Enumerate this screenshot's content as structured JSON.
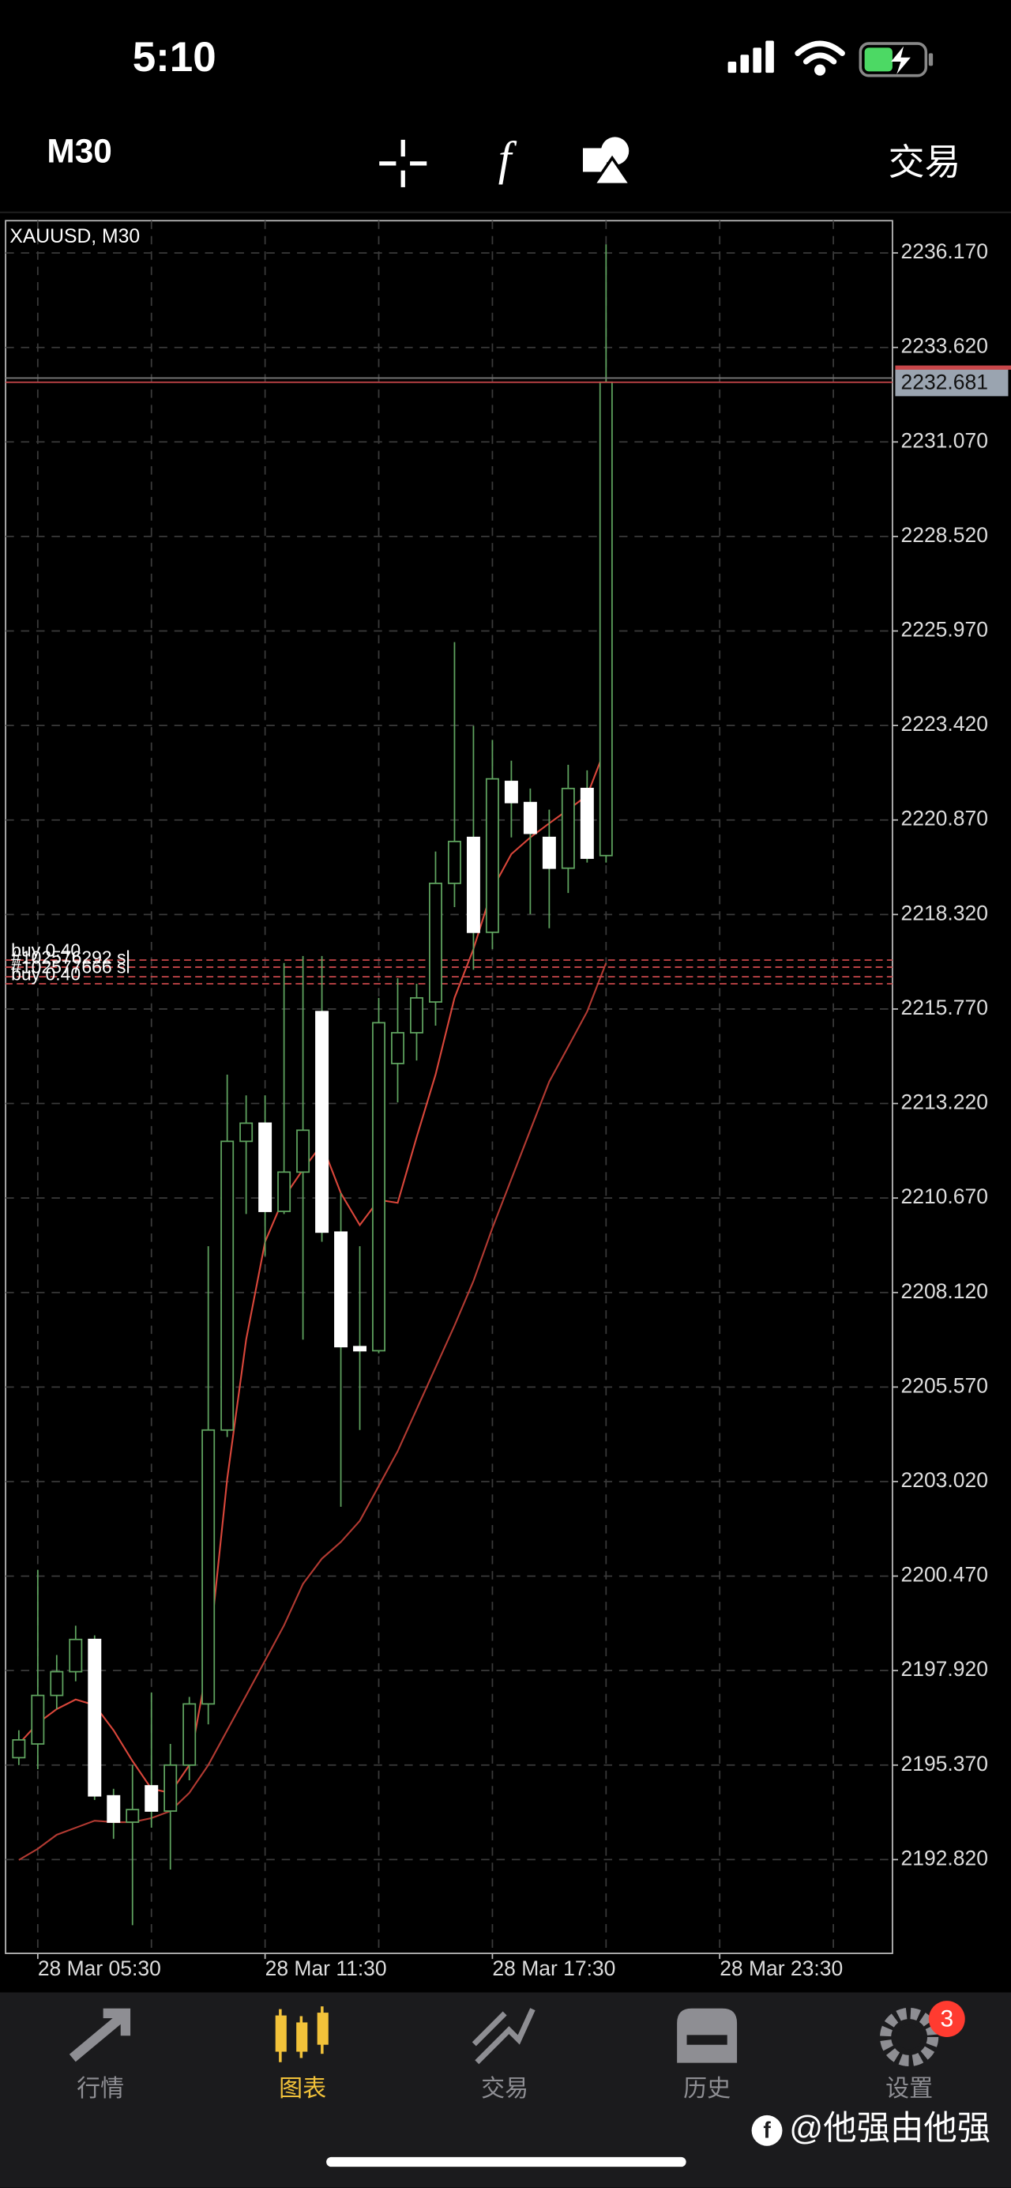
{
  "status_bar": {
    "time": "5:10"
  },
  "toolbar": {
    "timeframe": "M30",
    "trade": "交易"
  },
  "chart_data": {
    "type": "candlestick",
    "title": "XAUUSD, M30",
    "x": [
      5,
      5.5,
      6,
      6.5,
      7,
      7.5,
      8,
      8.5,
      9,
      9.5,
      10,
      10.5,
      11,
      11.5,
      12,
      12.5,
      13,
      13.5,
      14,
      14.5,
      15,
      15.5,
      16,
      16.5,
      17,
      17.5,
      18,
      18.5,
      19,
      19.5,
      20,
      20.5
    ],
    "open": [
      2195.57,
      2195.94,
      2197.25,
      2197.89,
      2198.76,
      2194.54,
      2193.83,
      2194.81,
      2194.13,
      2195.37,
      2197.02,
      2204.41,
      2212.2,
      2212.69,
      2210.31,
      2211.37,
      2215.7,
      2209.75,
      2206.66,
      2206.55,
      2214.3,
      2215.13,
      2215.96,
      2219.16,
      2220.4,
      2217.84,
      2221.91,
      2221.34,
      2220.4,
      2219.57,
      2221.72,
      2219.91
    ],
    "high": [
      2196.31,
      2200.64,
      2198.34,
      2199.13,
      2198.87,
      2194.73,
      2195.37,
      2197.33,
      2195.94,
      2197.21,
      2209.37,
      2214.0,
      2213.44,
      2213.44,
      2217.01,
      2217.2,
      2217.2,
      2210.8,
      2209.37,
      2216.07,
      2216.6,
      2216.45,
      2220.02,
      2225.67,
      2223.41,
      2223.03,
      2222.47,
      2221.72,
      2221.15,
      2222.36,
      2222.21,
      2236.4
    ],
    "low": [
      2195.37,
      2195.26,
      2196.88,
      2197.63,
      2194.43,
      2193.38,
      2191.05,
      2193.68,
      2192.55,
      2194.96,
      2196.47,
      2204.22,
      2210.24,
      2209.11,
      2210.24,
      2206.85,
      2209.49,
      2202.34,
      2204.41,
      2206.48,
      2213.25,
      2214.38,
      2215.32,
      2218.52,
      2216.83,
      2217.39,
      2220.4,
      2218.33,
      2217.95,
      2218.9,
      2219.72,
      2219.72
    ],
    "close": [
      2196.05,
      2197.25,
      2197.89,
      2198.76,
      2194.54,
      2193.83,
      2194.17,
      2194.13,
      2195.37,
      2197.02,
      2204.41,
      2212.2,
      2212.69,
      2210.31,
      2211.37,
      2212.5,
      2209.75,
      2206.66,
      2206.55,
      2215.4,
      2215.13,
      2216.07,
      2219.16,
      2220.29,
      2217.84,
      2221.98,
      2221.34,
      2220.51,
      2219.57,
      2221.72,
      2219.84,
      2232.681
    ],
    "up_color": "#5fa35f",
    "down_color": "#ffffff",
    "wick_color": "#5fa35f",
    "series": [
      {
        "color": "#d9463a",
        "values": [
          2195.94,
          2196.5,
          2196.88,
          2197.14,
          2196.99,
          2196.31,
          2195.48,
          2194.73,
          2194.62,
          2195.37,
          2198.19,
          2203.09,
          2206.85,
          2209.49,
          2210.69,
          2211.44,
          2212.12,
          2210.8,
          2209.94,
          2210.62,
          2210.54,
          2212.31,
          2214.0,
          2216.07,
          2217.39,
          2219.01,
          2219.95,
          2220.4,
          2220.78,
          2221.15,
          2221.53,
          2222.85
        ]
      },
      {
        "color": "#b23a32",
        "values": [
          2192.81,
          2193.11,
          2193.49,
          2193.68,
          2193.87,
          2193.83,
          2193.83,
          2193.94,
          2194.13,
          2194.62,
          2195.37,
          2196.31,
          2197.25,
          2198.19,
          2199.14,
          2200.26,
          2200.94,
          2201.39,
          2201.96,
          2202.9,
          2203.84,
          2204.97,
          2206.1,
          2207.23,
          2208.43,
          2209.86,
          2211.18,
          2212.5,
          2213.81,
          2214.75,
          2215.7,
          2217.01
        ]
      }
    ],
    "current_price": 2232.681,
    "current_price_color": "#c8474a",
    "levels": [
      {
        "value": 2217.09,
        "label": "buy 0.40",
        "color": "#c8474a"
      },
      {
        "value": 2216.9,
        "label": "#102576292 sl",
        "color": "#c8474a"
      },
      {
        "value": 2216.64,
        "label": "#102577666 sl",
        "color": "#c8474a"
      },
      {
        "value": 2216.45,
        "label": "buy 0.40",
        "color": "#c8474a"
      }
    ],
    "xlim": [
      4.65,
      28.06
    ],
    "ylim": [
      2190.29,
      2237.04
    ],
    "grid": true,
    "xticks": [
      {
        "value": 5.5,
        "label": "28 Mar 05:30"
      },
      {
        "value": 11.5,
        "label": "28 Mar 11:30"
      },
      {
        "value": 17.5,
        "label": "28 Mar 17:30"
      },
      {
        "value": 23.5,
        "label": "28 Mar 23:30"
      }
    ],
    "x_minor_grid": [
      8.5,
      14.5,
      20.5,
      26.5
    ],
    "yticks": [
      {
        "value": 2236.17,
        "label": "2236.170"
      },
      {
        "value": 2233.62,
        "label": "2233.620"
      },
      {
        "value": 2231.07,
        "label": "2231.070"
      },
      {
        "value": 2228.52,
        "label": "2228.520"
      },
      {
        "value": 2225.97,
        "label": "2225.970"
      },
      {
        "value": 2223.42,
        "label": "2223.420"
      },
      {
        "value": 2220.87,
        "label": "2220.870"
      },
      {
        "value": 2218.32,
        "label": "2218.320"
      },
      {
        "value": 2215.77,
        "label": "2215.770"
      },
      {
        "value": 2213.22,
        "label": "2213.220"
      },
      {
        "value": 2210.67,
        "label": "2210.670"
      },
      {
        "value": 2208.12,
        "label": "2208.120"
      },
      {
        "value": 2205.57,
        "label": "2205.570"
      },
      {
        "value": 2203.02,
        "label": "2203.020"
      },
      {
        "value": 2200.47,
        "label": "2200.470"
      },
      {
        "value": 2197.92,
        "label": "2197.920"
      },
      {
        "value": 2195.37,
        "label": "2195.370"
      },
      {
        "value": 2192.82,
        "label": "2192.820"
      }
    ]
  },
  "tabs": [
    {
      "label": "行情"
    },
    {
      "label": "图表"
    },
    {
      "label": "交易"
    },
    {
      "label": "历史"
    },
    {
      "label": "设置",
      "badge": "3"
    }
  ],
  "active_tab": 1,
  "watermark": "@他强由他强"
}
